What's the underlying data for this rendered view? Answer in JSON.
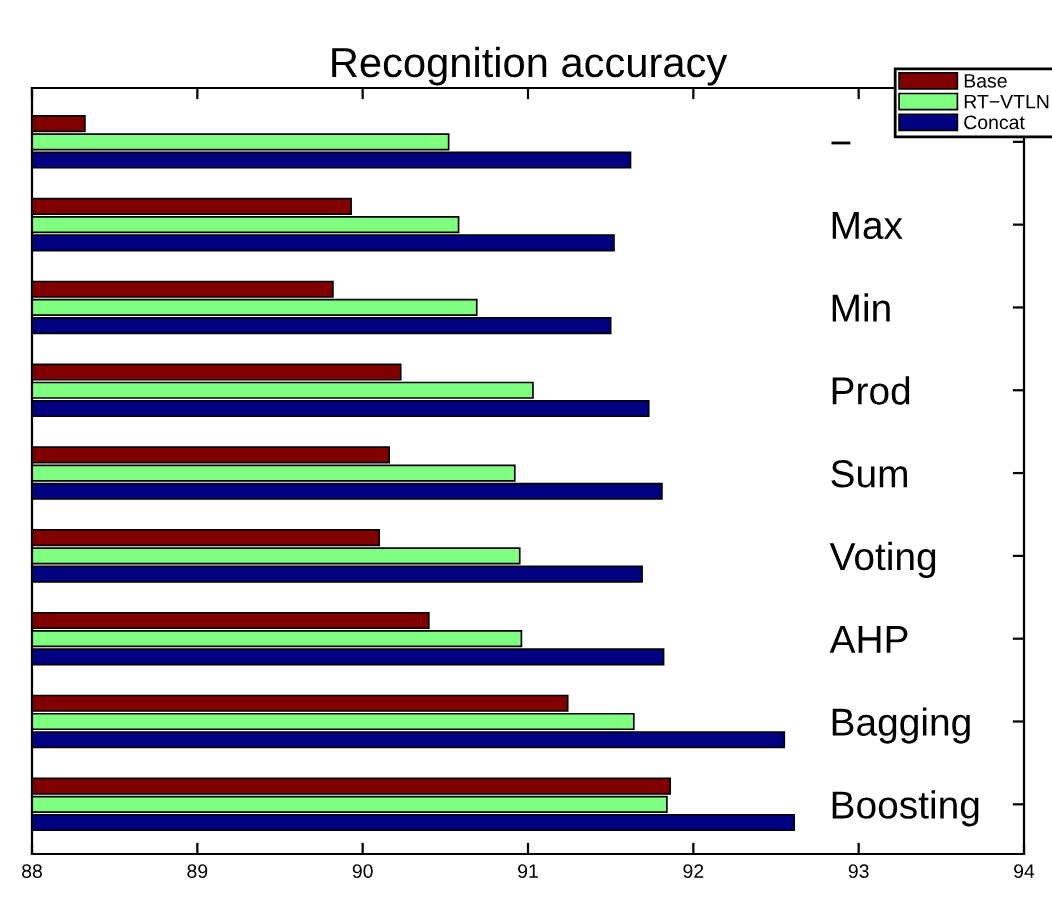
{
  "chart_data": {
    "type": "bar",
    "orientation": "horizontal",
    "title": "Recognition accuracy",
    "categories": [
      "−",
      "Max",
      "Min",
      "Prod",
      "Sum",
      "Voting",
      "AHP",
      "Bagging",
      "Boosting"
    ],
    "series": [
      {
        "name": "Base",
        "color": "#800000",
        "values": [
          88.32,
          89.93,
          89.82,
          90.23,
          90.16,
          90.1,
          90.4,
          91.24,
          91.86
        ]
      },
      {
        "name": "RT−VTLN",
        "color": "#80ff80",
        "values": [
          90.52,
          90.58,
          90.69,
          91.03,
          90.92,
          90.95,
          90.96,
          91.64,
          91.84
        ]
      },
      {
        "name": "Concat",
        "color": "#000080",
        "values": [
          91.62,
          91.52,
          91.5,
          91.73,
          91.81,
          91.69,
          91.82,
          92.55,
          92.61
        ]
      }
    ],
    "xlim": [
      88,
      94
    ],
    "xticks": [
      88,
      89,
      90,
      91,
      92,
      93,
      94
    ],
    "grid": false,
    "legend": "top right"
  }
}
